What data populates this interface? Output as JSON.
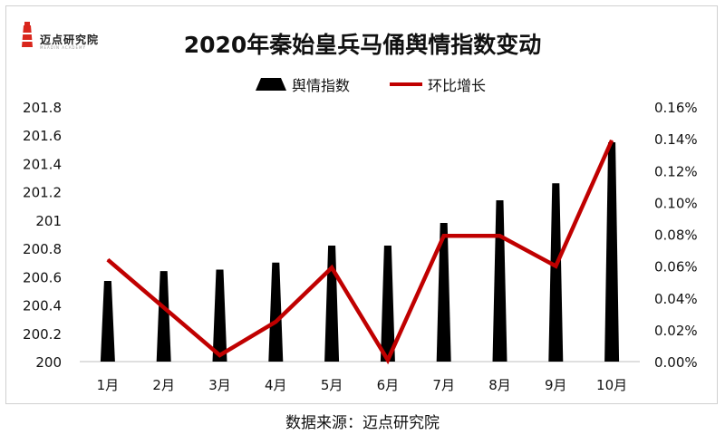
{
  "logo": {
    "text": "迈点研究院",
    "subtext": "MEADIN ACADEMY",
    "mark_color": "#d9261c"
  },
  "chart_data": {
    "type": "bar",
    "title": "2020年秦始皇兵马俑舆情指数变动",
    "categories": [
      "1月",
      "2月",
      "3月",
      "4月",
      "5月",
      "6月",
      "7月",
      "8月",
      "9月",
      "10月"
    ],
    "series": [
      {
        "name": "舆情指数",
        "type": "bar",
        "axis": "left",
        "color": "#000000",
        "values": [
          200.57,
          200.64,
          200.65,
          200.7,
          200.82,
          200.82,
          200.98,
          201.14,
          201.26,
          201.55
        ]
      },
      {
        "name": "环比增长",
        "type": "line",
        "axis": "right",
        "color": "#c00000",
        "values": [
          0.064,
          0.034,
          0.004,
          0.025,
          0.059,
          0.001,
          0.079,
          0.079,
          0.06,
          0.139
        ]
      }
    ],
    "y_left": {
      "min": 200,
      "max": 201.8,
      "ticks": [
        "200",
        "200.2",
        "200.4",
        "200.6",
        "200.8",
        "201",
        "201.2",
        "201.4",
        "201.6",
        "201.8"
      ]
    },
    "y_right": {
      "min": 0,
      "max": 0.16,
      "unit": "%",
      "ticks": [
        "0.00%",
        "0.02%",
        "0.04%",
        "0.06%",
        "0.08%",
        "0.10%",
        "0.12%",
        "0.14%",
        "0.16%"
      ]
    },
    "grid": false,
    "legend_position": "top-center"
  },
  "source": "数据来源：迈点研究院"
}
